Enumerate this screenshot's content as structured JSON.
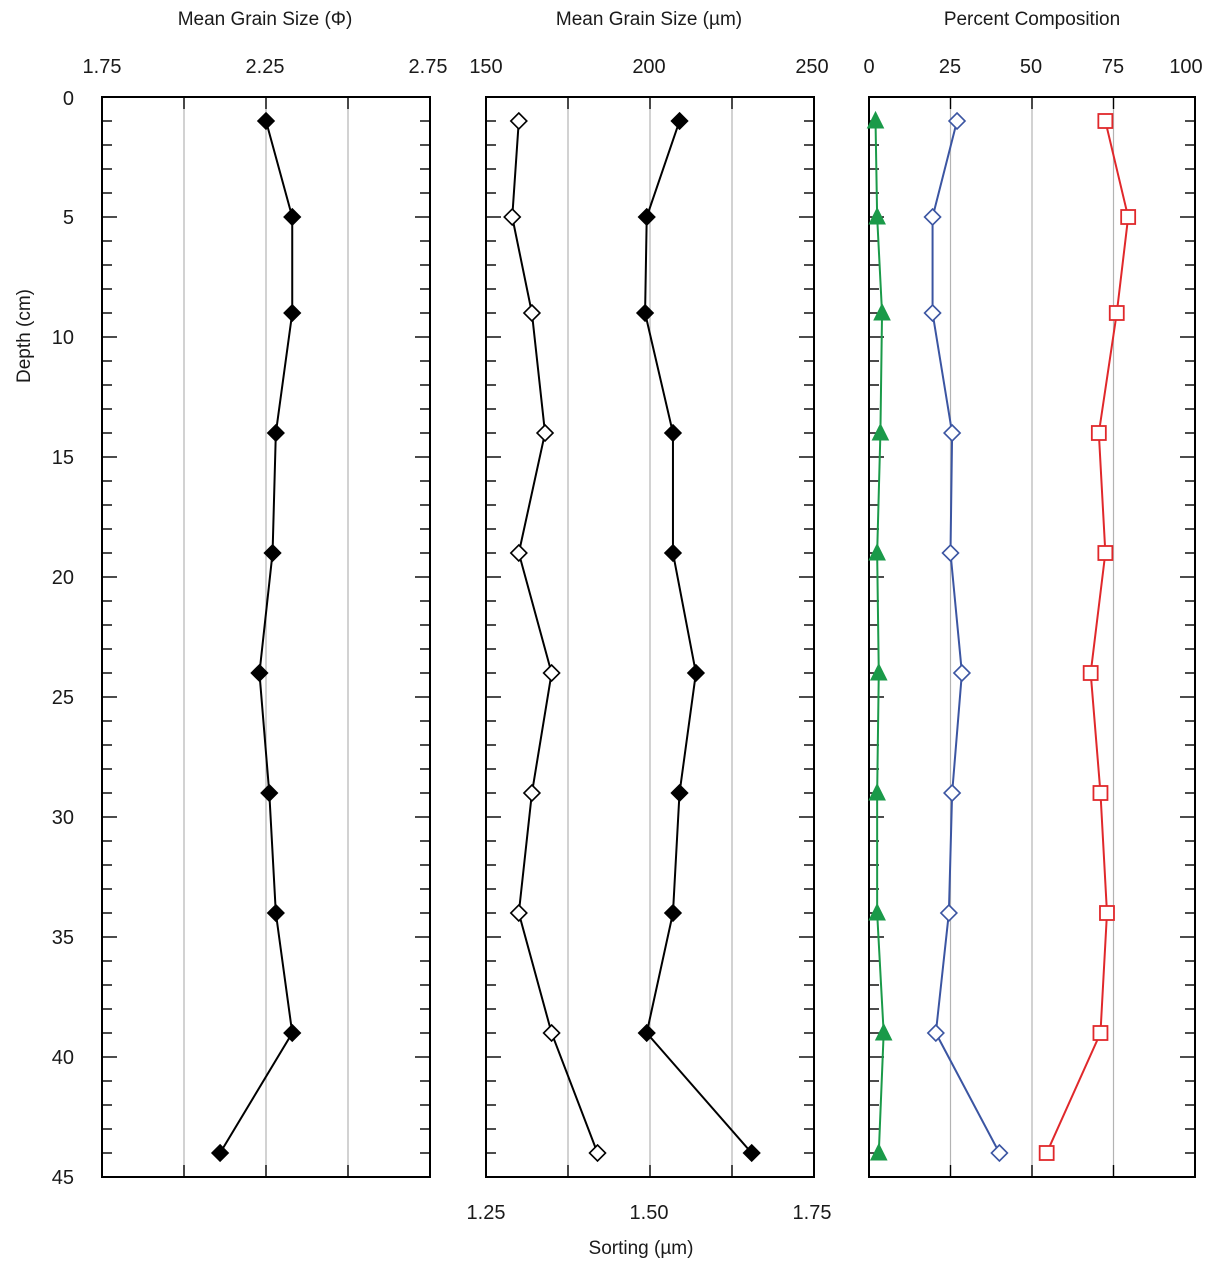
{
  "y_axis": {
    "label": "Depth (cm)",
    "min": 0,
    "max": 45,
    "tick_labels": [
      "0",
      "5",
      "10",
      "15",
      "20",
      "25",
      "30",
      "35",
      "40",
      "45"
    ]
  },
  "panels": [
    {
      "id": "phi",
      "top_title": "Mean Grain Size (Φ)",
      "top_tick_labels": [
        "1.75",
        "2.25",
        "2.75"
      ],
      "xlim": [
        1.75,
        2.75
      ],
      "grid_x": [
        2.0,
        2.25,
        2.5
      ]
    },
    {
      "id": "um",
      "top_title": "Mean Grain Size (µm)",
      "top_tick_labels": [
        "150",
        "200",
        "250"
      ],
      "xlim": [
        150,
        250
      ],
      "grid_x": [
        175,
        200,
        225
      ],
      "bottom_title": "Sorting (µm)",
      "bottom_tick_labels": [
        "1.25",
        "1.50",
        "1.75"
      ],
      "bottom_xlim": [
        1.25,
        1.75
      ]
    },
    {
      "id": "pct",
      "top_title": "Percent Composition",
      "top_tick_labels": [
        "0",
        "25",
        "50",
        "75",
        "100"
      ],
      "xlim": [
        0,
        100
      ],
      "grid_x": [
        25,
        50,
        75
      ]
    }
  ],
  "chart_data": [
    {
      "type": "line",
      "panel": "phi",
      "title": "Mean Grain Size (Φ)",
      "xlim": [
        1.75,
        2.75
      ],
      "ylim": [
        45,
        0
      ],
      "ylabel": "Depth (cm)",
      "grid": true,
      "series": [
        {
          "marker": "diamond-filled",
          "color": "#000000",
          "points": [
            [
              2.25,
              1
            ],
            [
              2.33,
              5
            ],
            [
              2.33,
              9
            ],
            [
              2.28,
              14
            ],
            [
              2.27,
              19
            ],
            [
              2.23,
              24
            ],
            [
              2.26,
              29
            ],
            [
              2.28,
              34
            ],
            [
              2.33,
              39
            ],
            [
              2.11,
              44
            ]
          ]
        }
      ]
    },
    {
      "type": "line",
      "panel": "um",
      "title": "Mean Grain Size (µm)",
      "xlabel": "Sorting (µm)",
      "xlim": [
        150,
        250
      ],
      "secondary_xlim": [
        1.25,
        1.75
      ],
      "ylim": [
        45,
        0
      ],
      "grid": true,
      "series": [
        {
          "marker": "diamond-filled",
          "color": "#000000",
          "axis": "Mean Grain Size (µm)",
          "points": [
            [
              209,
              1
            ],
            [
              199,
              5
            ],
            [
              198.5,
              9
            ],
            [
              207,
              14
            ],
            [
              207,
              19
            ],
            [
              214,
              24
            ],
            [
              209,
              29
            ],
            [
              207,
              34
            ],
            [
              199,
              39
            ],
            [
              231,
              44
            ]
          ]
        },
        {
          "marker": "diamond-open",
          "color": "#000000",
          "axis": "Sorting (µm)",
          "points": [
            [
              1.3,
              1
            ],
            [
              1.29,
              5
            ],
            [
              1.32,
              9
            ],
            [
              1.34,
              14
            ],
            [
              1.3,
              19
            ],
            [
              1.35,
              24
            ],
            [
              1.32,
              29
            ],
            [
              1.3,
              34
            ],
            [
              1.35,
              39
            ],
            [
              1.42,
              44
            ]
          ]
        }
      ]
    },
    {
      "type": "line",
      "panel": "pct",
      "title": "Percent Composition",
      "xlim": [
        0,
        100
      ],
      "ylim": [
        45,
        0
      ],
      "grid": true,
      "series": [
        {
          "marker": "triangle-filled",
          "color": "#1a9a49",
          "points": [
            [
              2,
              1
            ],
            [
              2.5,
              5
            ],
            [
              4,
              9
            ],
            [
              3.5,
              14
            ],
            [
              2.5,
              19
            ],
            [
              3,
              24
            ],
            [
              2.5,
              29
            ],
            [
              2.5,
              34
            ],
            [
              4.5,
              39
            ],
            [
              3,
              44
            ]
          ]
        },
        {
          "marker": "diamond-open",
          "color": "#3b55a2",
          "points": [
            [
              27,
              1
            ],
            [
              19.5,
              5
            ],
            [
              19.5,
              9
            ],
            [
              25.5,
              14
            ],
            [
              25,
              19
            ],
            [
              28.5,
              24
            ],
            [
              25.5,
              29
            ],
            [
              24.5,
              34
            ],
            [
              20.5,
              39
            ],
            [
              40,
              44
            ]
          ]
        },
        {
          "marker": "square-open",
          "color": "#e0282b",
          "points": [
            [
              72.5,
              1
            ],
            [
              79.5,
              5
            ],
            [
              76,
              9
            ],
            [
              70.5,
              14
            ],
            [
              72.5,
              19
            ],
            [
              68,
              24
            ],
            [
              71,
              29
            ],
            [
              73,
              34
            ],
            [
              71,
              39
            ],
            [
              54.5,
              44
            ]
          ]
        }
      ]
    }
  ]
}
